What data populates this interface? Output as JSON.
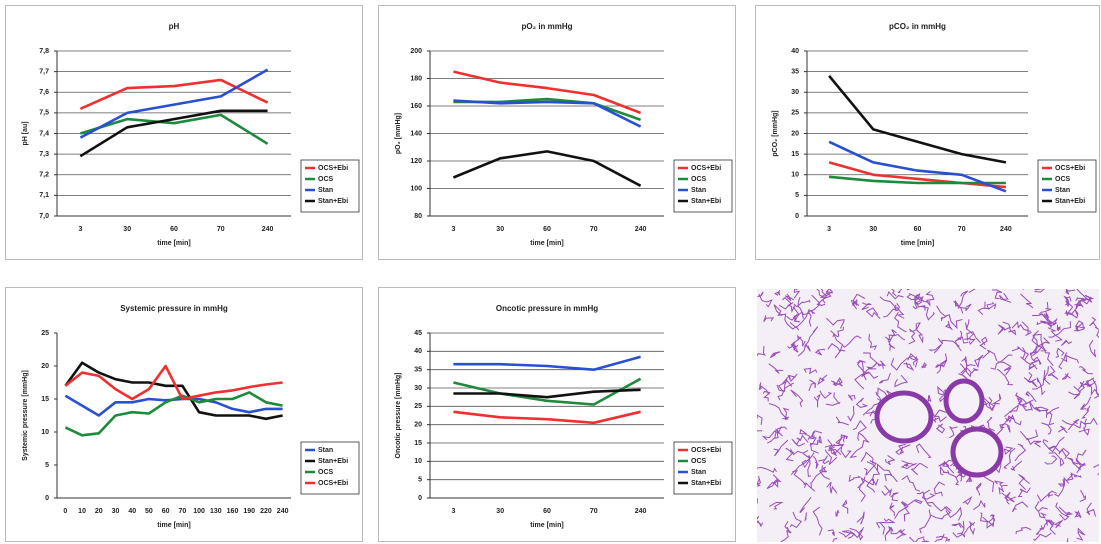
{
  "chart_data": [
    {
      "type": "line",
      "title": "pH",
      "x_label": "time [min]",
      "y_label": "pH [au]",
      "categories": [
        "3",
        "30",
        "60",
        "70",
        "240"
      ],
      "ylim": [
        7.0,
        7.8
      ],
      "yticks": [
        {
          "value": 7.0,
          "label": "7,0"
        },
        {
          "value": 7.1,
          "label": "7,1"
        },
        {
          "value": 7.2,
          "label": "7,2"
        },
        {
          "value": 7.3,
          "label": "7,3"
        },
        {
          "value": 7.4,
          "label": "7,4"
        },
        {
          "value": 7.5,
          "label": "7,5"
        },
        {
          "value": 7.6,
          "label": "7,6"
        },
        {
          "value": 7.7,
          "label": "7,7"
        },
        {
          "value": 7.8,
          "label": "7,8"
        }
      ],
      "grid": true,
      "legend": "right",
      "series": [
        {
          "name": "OCS+Ebi",
          "color": "#f03030",
          "values": [
            7.52,
            7.62,
            7.63,
            7.66,
            7.55
          ]
        },
        {
          "name": "OCS",
          "color": "#1e8a3c",
          "values": [
            7.4,
            7.47,
            7.45,
            7.49,
            7.35
          ]
        },
        {
          "name": "Stan",
          "color": "#2850d0",
          "values": [
            7.38,
            7.5,
            7.54,
            7.58,
            7.71
          ]
        },
        {
          "name": "Stan+Ebi",
          "color": "#111111",
          "values": [
            7.29,
            7.43,
            7.47,
            7.51,
            7.51
          ]
        }
      ]
    },
    {
      "type": "line",
      "title": "pO₂ in mmHg",
      "x_label": "time [min]",
      "y_label": "pO₂ [mmHg]",
      "categories": [
        "3",
        "30",
        "60",
        "70",
        "240"
      ],
      "ylim": [
        80,
        200
      ],
      "yticks": [
        80,
        100,
        120,
        140,
        160,
        180,
        200
      ],
      "grid": true,
      "legend": "right",
      "series": [
        {
          "name": "OCS+Ebi",
          "color": "#f03030",
          "values": [
            185,
            177,
            173,
            168,
            155
          ]
        },
        {
          "name": "OCS",
          "color": "#1e8a3c",
          "values": [
            163,
            163,
            165,
            162,
            150
          ]
        },
        {
          "name": "Stan",
          "color": "#2850d0",
          "values": [
            164,
            162,
            163,
            162,
            145
          ]
        },
        {
          "name": "Stan+Ebi",
          "color": "#111111",
          "values": [
            108,
            122,
            127,
            120,
            102
          ]
        }
      ]
    },
    {
      "type": "line",
      "title": "pCO₂ in mmHg",
      "x_label": "time [min]",
      "y_label": "pCO₂ [mmHg]",
      "categories": [
        "3",
        "30",
        "60",
        "70",
        "240"
      ],
      "ylim": [
        0,
        40
      ],
      "yticks": [
        0,
        5,
        10,
        15,
        20,
        25,
        30,
        35,
        40
      ],
      "grid": true,
      "legend": "right",
      "series": [
        {
          "name": "OCS+Ebi",
          "color": "#f03030",
          "values": [
            13,
            10,
            9,
            8,
            7
          ]
        },
        {
          "name": "OCS",
          "color": "#1e8a3c",
          "values": [
            9.5,
            8.5,
            8,
            8,
            8
          ]
        },
        {
          "name": "Stan",
          "color": "#2850d0",
          "values": [
            18,
            13,
            11,
            10,
            6
          ]
        },
        {
          "name": "Stan+Ebi",
          "color": "#111111",
          "values": [
            34,
            21,
            18,
            15,
            13
          ]
        }
      ]
    },
    {
      "type": "line",
      "title": "Systemic pressure in mmHg",
      "x_label": "time [min]",
      "y_label": "Systemic pressure [mmHg]",
      "categories": [
        "0",
        "10",
        "20",
        "30",
        "40",
        "50",
        "60",
        "70",
        "100",
        "130",
        "160",
        "190",
        "220",
        "240"
      ],
      "ylim": [
        0,
        25
      ],
      "yticks": [
        0,
        5,
        10,
        15,
        20,
        25
      ],
      "grid": false,
      "legend": "right",
      "series": [
        {
          "name": "Stan",
          "color": "#2850d0",
          "values": [
            15.5,
            14,
            12.5,
            14.5,
            14.5,
            15,
            14.8,
            15,
            15,
            14.5,
            13.5,
            13,
            13.5,
            13.5
          ]
        },
        {
          "name": "Stan+Ebi",
          "color": "#111111",
          "values": [
            17,
            20.5,
            19,
            18,
            17.5,
            17.5,
            17,
            17,
            13,
            12.5,
            12.5,
            12.5,
            12,
            12.5
          ]
        },
        {
          "name": "OCS",
          "color": "#1e8a3c",
          "values": [
            10.7,
            9.5,
            9.8,
            12.5,
            13,
            12.8,
            14.5,
            15.5,
            14.5,
            15,
            15,
            16,
            14.5,
            14
          ]
        },
        {
          "name": "OCS+Ebi",
          "color": "#f03030",
          "values": [
            17,
            19,
            18.5,
            16.5,
            15,
            16.5,
            20,
            15,
            15.5,
            16,
            16.3,
            16.8,
            17.2,
            17.5
          ]
        }
      ]
    },
    {
      "type": "line",
      "title": "Oncotic pressure in mmHg",
      "x_label": "time [min]",
      "y_label": "Oncotic pressure [mmHg]",
      "categories": [
        "3",
        "30",
        "60",
        "70",
        "240"
      ],
      "ylim": [
        0,
        45
      ],
      "yticks": [
        0,
        5,
        10,
        15,
        20,
        25,
        30,
        35,
        40,
        45
      ],
      "grid": true,
      "legend": "right",
      "series": [
        {
          "name": "OCS+Ebi",
          "color": "#f03030",
          "values": [
            23.5,
            22,
            21.5,
            20.5,
            23.5
          ]
        },
        {
          "name": "OCS",
          "color": "#1e8a3c",
          "values": [
            31.5,
            28.5,
            26.5,
            25.5,
            32.5
          ]
        },
        {
          "name": "Stan",
          "color": "#2850d0",
          "values": [
            36.5,
            36.5,
            36,
            35,
            38.5
          ]
        },
        {
          "name": "Stan+Ebi",
          "color": "#111111",
          "values": [
            28.5,
            28.5,
            27.5,
            29,
            29.5
          ]
        }
      ]
    }
  ]
}
